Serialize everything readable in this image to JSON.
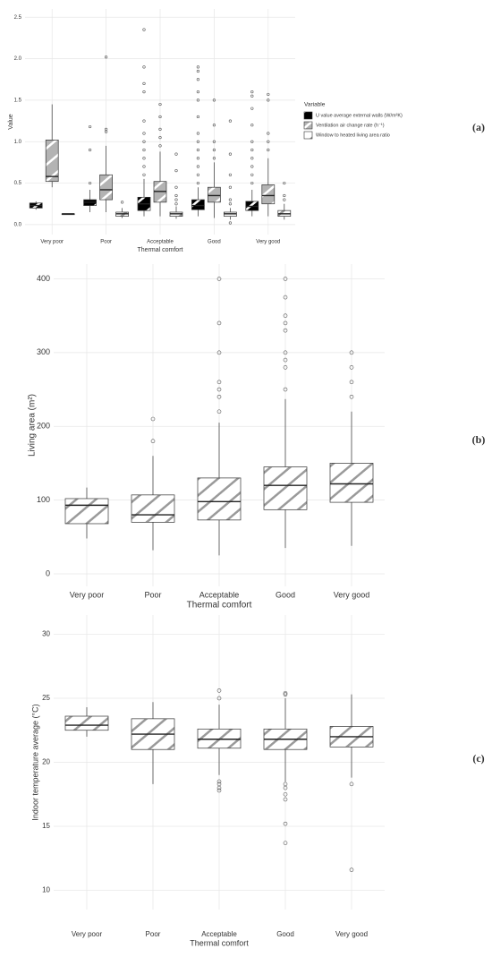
{
  "chart_data": [
    {
      "type": "box",
      "annotation": "(a)",
      "x_label": "Thermal comfort",
      "y_label": "Value",
      "legend_title": "Variable",
      "categories": [
        "Very poor",
        "Poor",
        "Acceptable",
        "Good",
        "Very good"
      ],
      "ylim": [
        -0.12,
        2.6
      ],
      "yticks": [
        {
          "value": 0,
          "label": "0.0"
        },
        0.5,
        {
          "value": 1,
          "label": "1.0"
        },
        1.5,
        {
          "value": 2,
          "label": "2.0"
        },
        2.5
      ],
      "grid": true,
      "series": [
        {
          "name": "U value average external walls (W/m²K)",
          "color": "#000000",
          "boxes": [
            {
              "whislo": 0.18,
              "q1": 0.2,
              "med": 0.23,
              "q3": 0.26,
              "whishi": 0.28,
              "outliers": []
            },
            {
              "whislo": 0.15,
              "q1": 0.23,
              "med": 0.27,
              "q3": 0.3,
              "whishi": 0.42,
              "outliers": [
                0.5,
                0.9,
                1.18
              ]
            },
            {
              "whislo": 0.1,
              "q1": 0.17,
              "med": 0.25,
              "q3": 0.33,
              "whishi": 0.55,
              "outliers": [
                0.6,
                0.7,
                0.8,
                0.9,
                1.0,
                1.1,
                1.25,
                1.6,
                1.7,
                1.9,
                2.35
              ]
            },
            {
              "whislo": 0.1,
              "q1": 0.18,
              "med": 0.23,
              "q3": 0.3,
              "whishi": 0.45,
              "outliers": [
                0.5,
                0.6,
                0.7,
                0.8,
                0.9,
                1.0,
                1.1,
                1.3,
                1.5,
                1.6,
                1.75,
                1.85,
                1.9
              ]
            },
            {
              "whislo": 0.1,
              "q1": 0.17,
              "med": 0.22,
              "q3": 0.28,
              "whishi": 0.42,
              "outliers": [
                0.5,
                0.6,
                0.7,
                0.8,
                0.9,
                1.0,
                1.2,
                1.4,
                1.55,
                1.6
              ]
            }
          ]
        },
        {
          "name": "Ventilation air change rate (h⁻¹)",
          "color": "#b3b3b3",
          "boxes": [
            {
              "whislo": 0.45,
              "q1": 0.52,
              "med": 0.58,
              "q3": 1.02,
              "whishi": 1.45,
              "outliers": []
            },
            {
              "whislo": 0.15,
              "q1": 0.3,
              "med": 0.42,
              "q3": 0.6,
              "whishi": 0.95,
              "outliers": [
                1.12,
                1.15,
                2.02
              ]
            },
            {
              "whislo": 0.1,
              "q1": 0.27,
              "med": 0.4,
              "q3": 0.52,
              "whishi": 0.88,
              "outliers": [
                0.95,
                1.05,
                1.15,
                1.3,
                1.45
              ]
            },
            {
              "whislo": 0.08,
              "q1": 0.27,
              "med": 0.35,
              "q3": 0.45,
              "whishi": 0.75,
              "outliers": [
                0.8,
                0.9,
                1.0,
                1.2,
                1.5
              ]
            },
            {
              "whislo": 0.1,
              "q1": 0.25,
              "med": 0.35,
              "q3": 0.48,
              "whishi": 0.8,
              "outliers": [
                0.9,
                1.0,
                1.1,
                1.5,
                1.57
              ]
            }
          ]
        },
        {
          "name": "Window to heated living area ratio",
          "color": "#ffffff",
          "boxes": [
            {
              "whislo": 0.12,
              "q1": 0.12,
              "med": 0.13,
              "q3": 0.13,
              "whishi": 0.13,
              "outliers": []
            },
            {
              "whislo": 0.08,
              "q1": 0.1,
              "med": 0.13,
              "q3": 0.15,
              "whishi": 0.2,
              "outliers": [
                0.27
              ]
            },
            {
              "whislo": 0.07,
              "q1": 0.1,
              "med": 0.13,
              "q3": 0.15,
              "whishi": 0.22,
              "outliers": [
                0.25,
                0.3,
                0.35,
                0.45,
                0.65,
                0.85
              ]
            },
            {
              "whislo": 0.06,
              "q1": 0.1,
              "med": 0.13,
              "q3": 0.15,
              "whishi": 0.2,
              "outliers": [
                0.02,
                0.25,
                0.3,
                0.45,
                0.6,
                0.85,
                1.25
              ]
            },
            {
              "whislo": 0.06,
              "q1": 0.1,
              "med": 0.13,
              "q3": 0.17,
              "whishi": 0.25,
              "outliers": [
                0.3,
                0.35,
                0.5
              ]
            }
          ]
        }
      ]
    },
    {
      "type": "box",
      "annotation": "(b)",
      "x_label": "Thermal comfort",
      "y_label": "Living area (m²)",
      "categories": [
        "Very poor",
        "Poor",
        "Acceptable",
        "Good",
        "Very good"
      ],
      "ylim": [
        -17,
        420
      ],
      "yticks": [
        0,
        100,
        200,
        300,
        400
      ],
      "grid": true,
      "series": [
        {
          "color": "#ffffff",
          "boxes": [
            {
              "whislo": 48,
              "q1": 68,
              "med": 93,
              "q3": 102,
              "whishi": 117,
              "outliers": []
            },
            {
              "whislo": 32,
              "q1": 70,
              "med": 80,
              "q3": 107,
              "whishi": 160,
              "outliers": [
                180,
                210
              ]
            },
            {
              "whislo": 25,
              "q1": 73,
              "med": 98,
              "q3": 130,
              "whishi": 205,
              "outliers": [
                220,
                240,
                250,
                260,
                300,
                340,
                400
              ]
            },
            {
              "whislo": 35,
              "q1": 87,
              "med": 120,
              "q3": 145,
              "whishi": 237,
              "outliers": [
                250,
                280,
                290,
                300,
                330,
                340,
                350,
                375,
                400
              ]
            },
            {
              "whislo": 38,
              "q1": 97,
              "med": 122,
              "q3": 150,
              "whishi": 220,
              "outliers": [
                240,
                260,
                280,
                300
              ]
            }
          ]
        }
      ]
    },
    {
      "type": "box",
      "annotation": "(c)",
      "x_label": "Thermal comfort",
      "y_label": "Indoor temperature average (°C)",
      "categories": [
        "Very poor",
        "Poor",
        "Acceptable",
        "Good",
        "Very good"
      ],
      "ylim": [
        8.5,
        31.5
      ],
      "yticks": [
        10,
        15,
        20,
        25,
        30
      ],
      "grid": true,
      "series": [
        {
          "color": "#ffffff",
          "boxes": [
            {
              "whislo": 22.0,
              "q1": 22.5,
              "med": 22.9,
              "q3": 23.6,
              "whishi": 24.3,
              "outliers": []
            },
            {
              "whislo": 18.3,
              "q1": 21.0,
              "med": 22.2,
              "q3": 23.4,
              "whishi": 24.7,
              "outliers": []
            },
            {
              "whislo": 19.0,
              "q1": 21.1,
              "med": 21.8,
              "q3": 22.6,
              "whishi": 24.5,
              "outliers": [
                17.8,
                18.0,
                18.3,
                18.5,
                25.0,
                25.6
              ]
            },
            {
              "whislo": 18.5,
              "q1": 21.0,
              "med": 21.8,
              "q3": 22.6,
              "whishi": 25.0,
              "outliers": [
                13.7,
                15.2,
                17.1,
                17.5,
                18.0,
                18.3,
                25.3,
                25.4
              ]
            },
            {
              "whislo": 18.8,
              "q1": 21.2,
              "med": 22.0,
              "q3": 22.8,
              "whishi": 25.3,
              "outliers": [
                11.6,
                18.3
              ]
            }
          ]
        }
      ]
    }
  ]
}
